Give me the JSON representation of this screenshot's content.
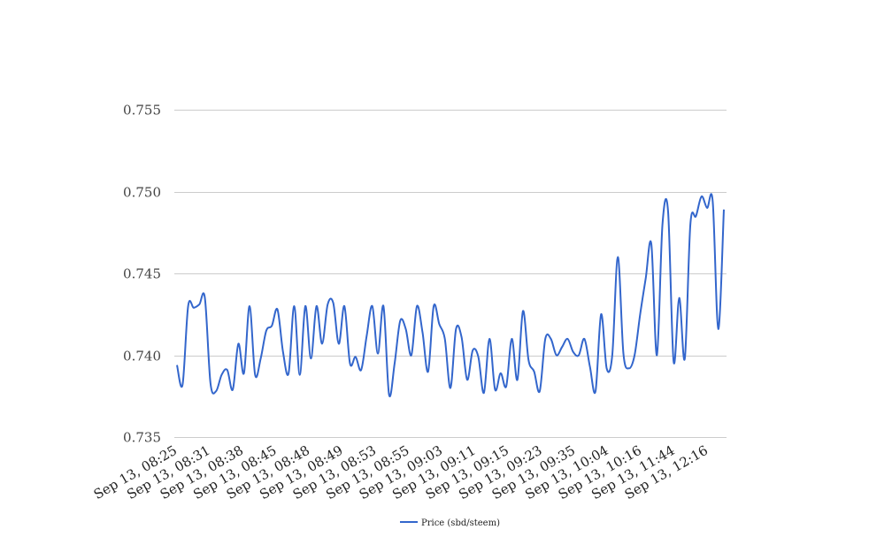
{
  "chart_data": {
    "type": "line",
    "title": "",
    "xlabel": "",
    "ylabel": "",
    "ylim": [
      0.735,
      0.755
    ],
    "yticks": [
      "0.735",
      "0.740",
      "0.745",
      "0.750",
      "0.755"
    ],
    "x_tick_labels": [
      "Sep 13, 08:25",
      "Sep 13, 08:31",
      "Sep 13, 08:38",
      "Sep 13, 08:45",
      "Sep 13, 08:48",
      "Sep 13, 08:49",
      "Sep 13, 08:53",
      "Sep 13, 08:55",
      "Sep 13, 09:03",
      "Sep 13, 09:11",
      "Sep 13, 09:15",
      "Sep 13, 09:23",
      "Sep 13, 09:35",
      "Sep 13, 10:04",
      "Sep 13, 10:16",
      "Sep 13, 11:44",
      "Sep 13, 12:16"
    ],
    "grid": true,
    "legend_position": "bottom",
    "series": [
      {
        "name": "Price (sbd/steem)",
        "color": "#3366cc",
        "values": [
          0.7394,
          0.7382,
          0.743,
          0.7429,
          0.7431,
          0.7435,
          0.7383,
          0.7378,
          0.7388,
          0.7391,
          0.7379,
          0.7407,
          0.7389,
          0.743,
          0.7388,
          0.7398,
          0.7415,
          0.7418,
          0.7428,
          0.7402,
          0.7389,
          0.743,
          0.7388,
          0.743,
          0.7398,
          0.743,
          0.7407,
          0.7431,
          0.7432,
          0.7407,
          0.743,
          0.7395,
          0.7399,
          0.7391,
          0.7412,
          0.743,
          0.7401,
          0.743,
          0.7376,
          0.7395,
          0.7421,
          0.7416,
          0.74,
          0.743,
          0.7414,
          0.739,
          0.743,
          0.7419,
          0.741,
          0.738,
          0.7416,
          0.7411,
          0.7385,
          0.7403,
          0.7399,
          0.7377,
          0.741,
          0.7379,
          0.7389,
          0.7381,
          0.741,
          0.7385,
          0.7427,
          0.7397,
          0.739,
          0.7378,
          0.741,
          0.741,
          0.74,
          0.7405,
          0.741,
          0.7402,
          0.74,
          0.741,
          0.7393,
          0.7378,
          0.7425,
          0.7392,
          0.74,
          0.746,
          0.7401,
          0.7392,
          0.74,
          0.7425,
          0.7447,
          0.7468,
          0.74,
          0.748,
          0.7488,
          0.7396,
          0.7435,
          0.7398,
          0.748,
          0.7485,
          0.7497,
          0.749,
          0.7494,
          0.7416,
          0.7489
        ]
      }
    ]
  }
}
